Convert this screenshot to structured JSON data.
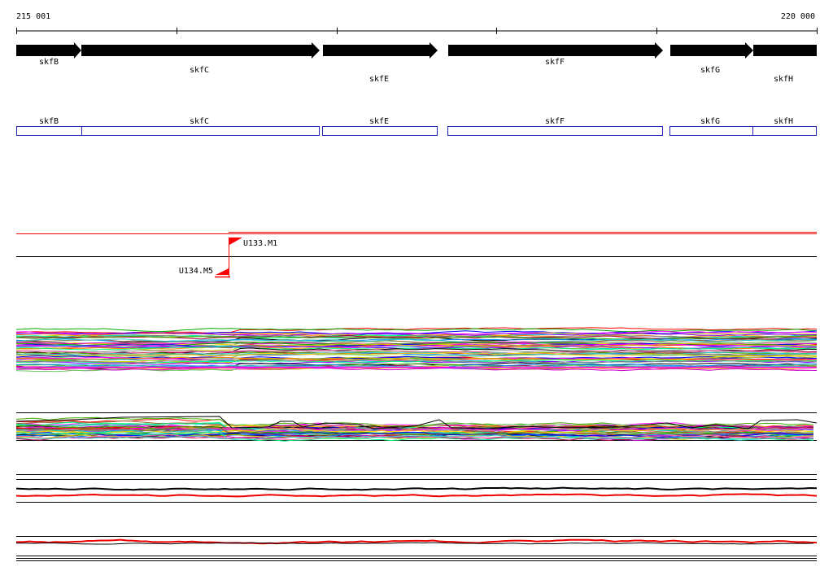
{
  "ruler": {
    "start_label": "215 001",
    "end_label": "220 000"
  },
  "genes": [
    {
      "label": "skfB"
    },
    {
      "label": "skfC"
    },
    {
      "label": "skfE"
    },
    {
      "label": "skfF"
    },
    {
      "label": "skfG"
    },
    {
      "label": "skfH"
    }
  ],
  "transcripts": {
    "markers": [
      {
        "label": "U133.M1",
        "direction": "forward"
      },
      {
        "label": "U134.M5",
        "direction": "reverse"
      }
    ]
  },
  "colors": {
    "gene_arrow": "#000000",
    "cds_box": "#2222bb",
    "marker": "#ff0000",
    "track_line": "#000000",
    "accent_red": "#ee0000"
  }
}
